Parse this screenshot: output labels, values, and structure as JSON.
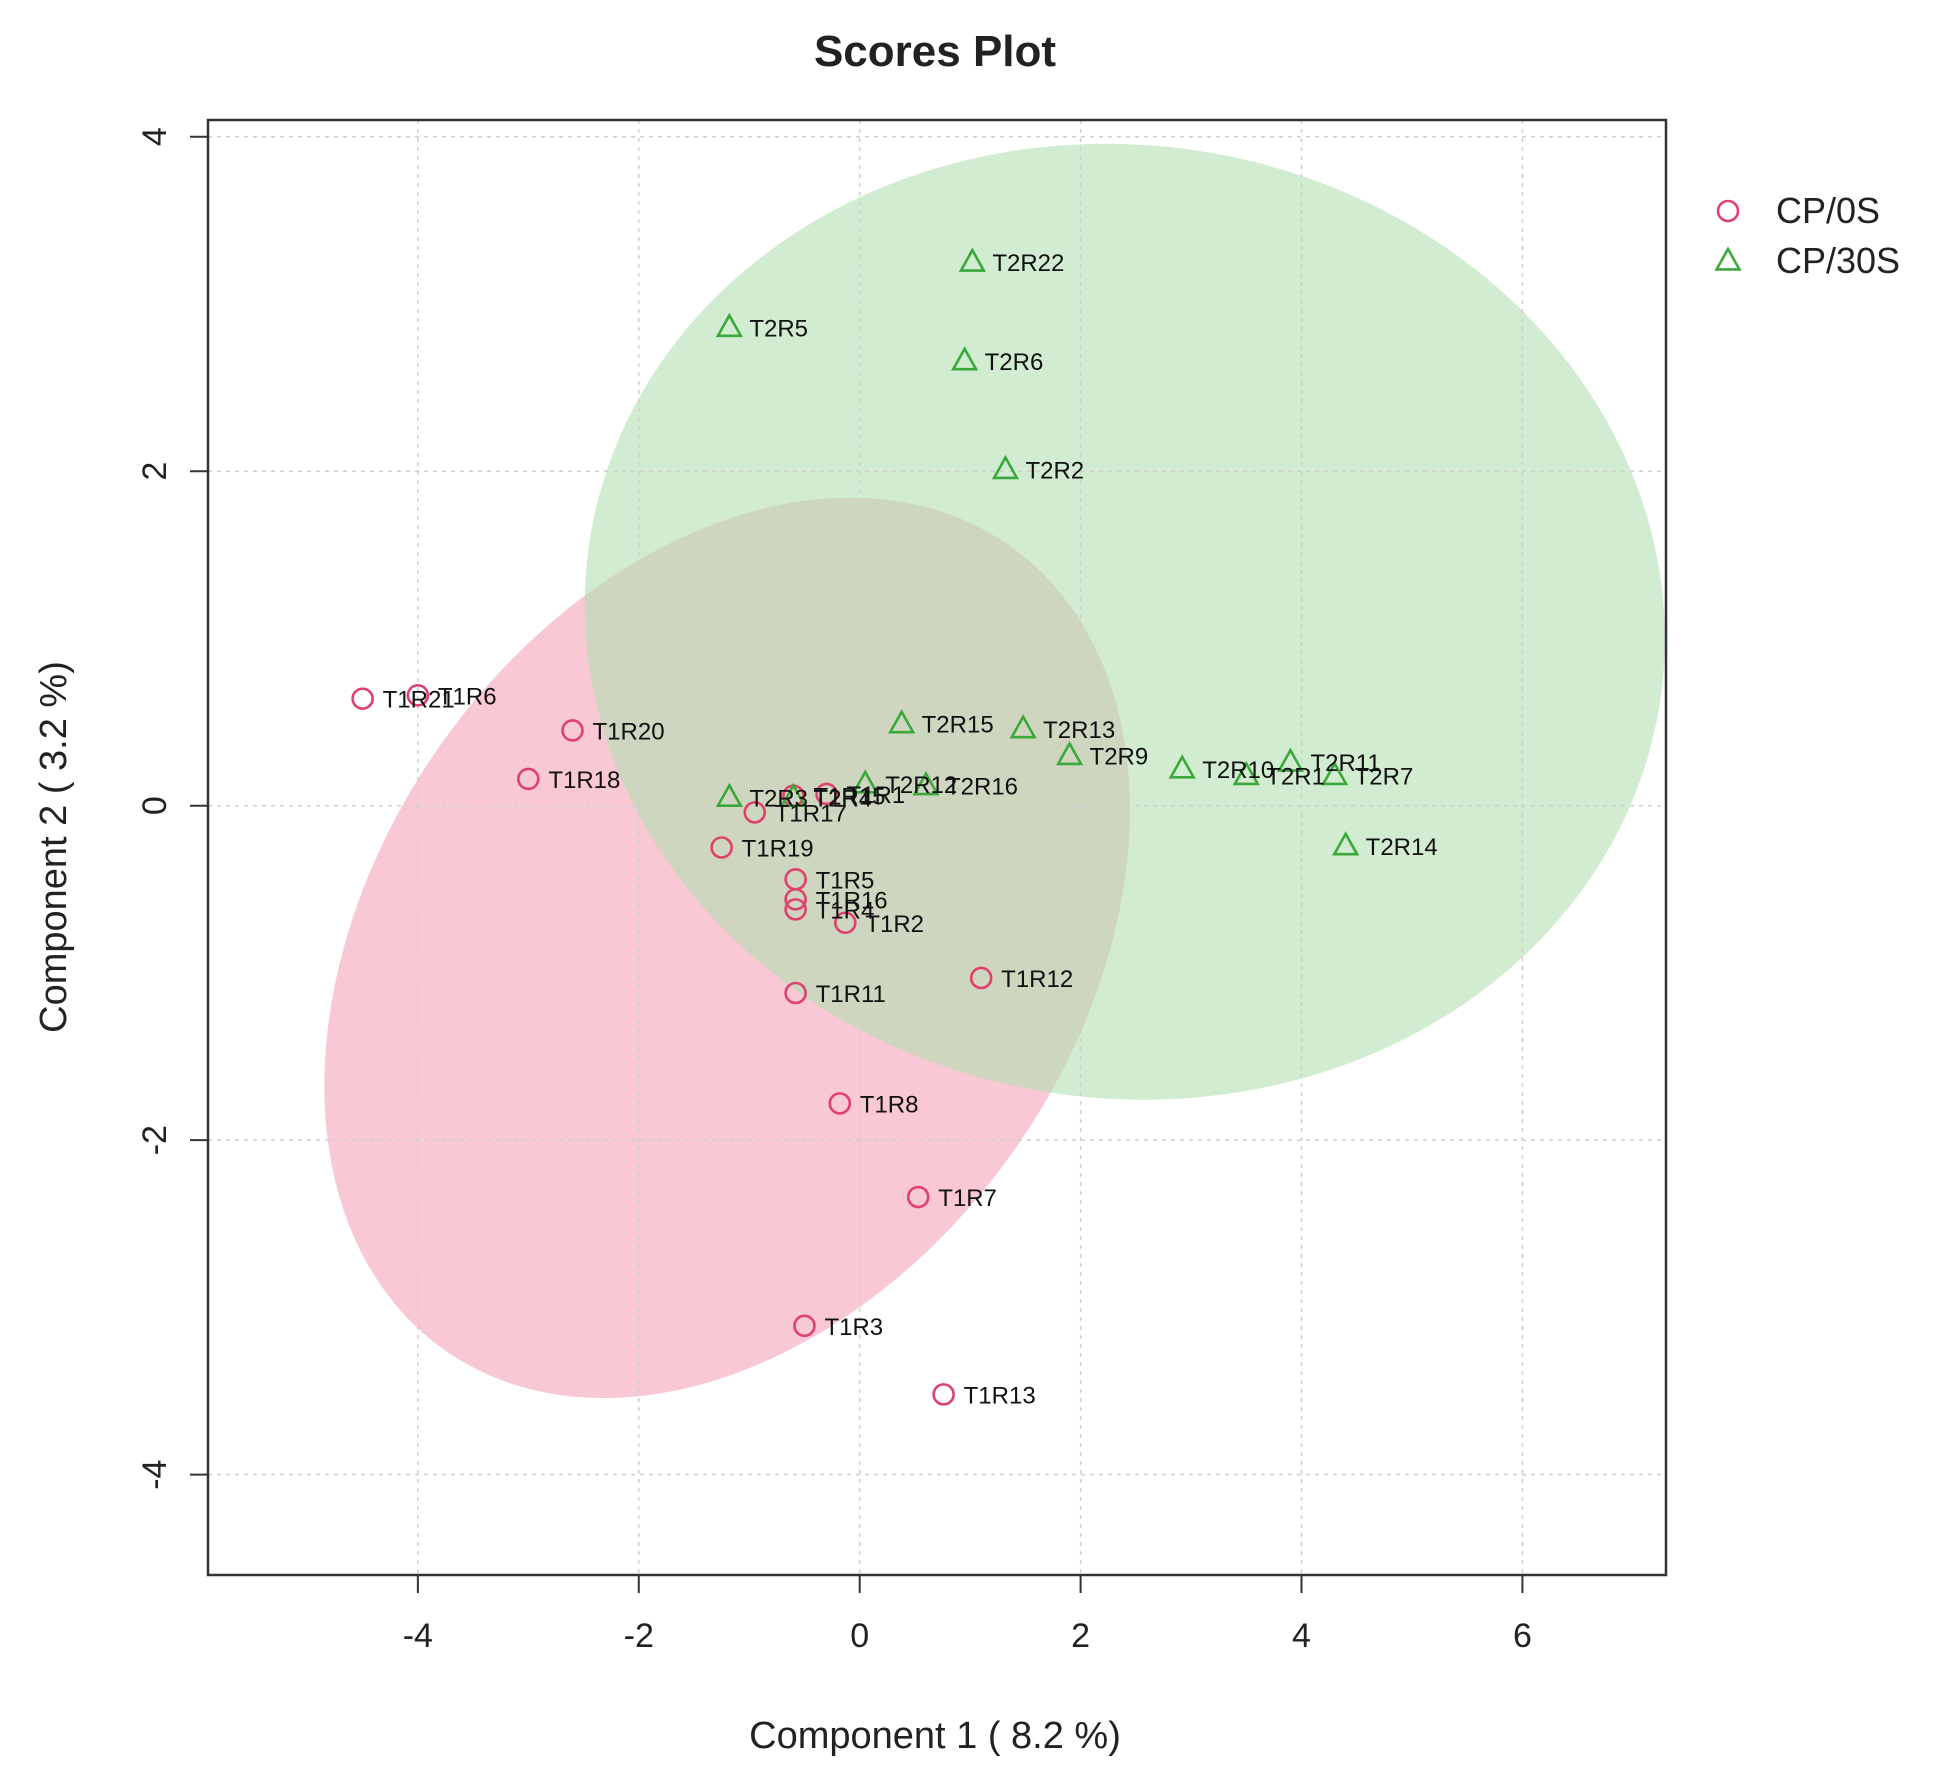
{
  "chart_data": {
    "type": "scatter",
    "title": "Scores Plot",
    "xlabel": "Component 1 ( 8.2 %)",
    "ylabel": "Component 2 ( 3.2 %)",
    "xlim": [
      -5.9,
      7.3
    ],
    "ylim": [
      -4.6,
      4.1
    ],
    "xticks": [
      -4,
      -2,
      0,
      2,
      4,
      6
    ],
    "yticks": [
      -4,
      -2,
      0,
      2,
      4
    ],
    "xtick_labels": [
      "-4",
      "-2",
      "0",
      "2",
      "4",
      "6"
    ],
    "ytick_labels": [
      "-4",
      "-2",
      "0",
      "2",
      "4"
    ],
    "grid": true,
    "legend_position": "top-right",
    "series": [
      {
        "name": "CP/0S",
        "marker": "circle",
        "color": "#e0406e",
        "fill": "#f4a3b8",
        "ellipse": {
          "cx": -1.2,
          "cy": -0.85,
          "rx": 4.45,
          "ry": 2.1,
          "angle_deg": 55
        },
        "points": [
          {
            "label": "T1R21",
            "x": -4.5,
            "y": 0.64
          },
          {
            "label": "T1R6",
            "x": -4.0,
            "y": 0.66
          },
          {
            "label": "T1R20",
            "x": -2.6,
            "y": 0.45
          },
          {
            "label": "T1R18",
            "x": -3.0,
            "y": 0.16
          },
          {
            "label": "T1R17",
            "x": -0.95,
            "y": -0.04
          },
          {
            "label": "T1R19",
            "x": -1.25,
            "y": -0.25
          },
          {
            "label": "T1R5",
            "x": -0.58,
            "y": -0.44
          },
          {
            "label": "T1R16",
            "x": -0.58,
            "y": -0.56
          },
          {
            "label": "T1R4",
            "x": -0.58,
            "y": -0.62
          },
          {
            "label": "T1R2",
            "x": -0.13,
            "y": -0.7
          },
          {
            "label": "T1R12",
            "x": 1.1,
            "y": -1.03
          },
          {
            "label": "T1R11",
            "x": -0.58,
            "y": -1.12
          },
          {
            "label": "T1R8",
            "x": -0.18,
            "y": -1.78
          },
          {
            "label": "T1R7",
            "x": 0.53,
            "y": -2.34
          },
          {
            "label": "T1R3",
            "x": -0.5,
            "y": -3.11
          },
          {
            "label": "T1R13",
            "x": 0.76,
            "y": -3.52
          },
          {
            "label": "T1R15",
            "x": -0.6,
            "y": 0.06
          },
          {
            "label": "T1R1",
            "x": -0.3,
            "y": 0.07
          }
        ]
      },
      {
        "name": "CP/30S",
        "marker": "triangle",
        "color": "#3aa83a",
        "fill": "#b3e0b3",
        "ellipse": {
          "cx": 2.4,
          "cy": 1.1,
          "rx": 4.9,
          "ry": 2.85,
          "angle_deg": -8
        },
        "points": [
          {
            "label": "T2R22",
            "x": 1.02,
            "y": 3.25
          },
          {
            "label": "T2R5",
            "x": -1.18,
            "y": 2.86
          },
          {
            "label": "T2R6",
            "x": 0.95,
            "y": 2.66
          },
          {
            "label": "T2R2",
            "x": 1.32,
            "y": 2.01
          },
          {
            "label": "T2R15",
            "x": 0.38,
            "y": 0.49
          },
          {
            "label": "T2R13",
            "x": 1.48,
            "y": 0.46
          },
          {
            "label": "T2R9",
            "x": 1.9,
            "y": 0.3
          },
          {
            "label": "T2R11",
            "x": 3.9,
            "y": 0.26
          },
          {
            "label": "T2R10",
            "x": 2.92,
            "y": 0.22
          },
          {
            "label": "T2R1",
            "x": 3.5,
            "y": 0.18
          },
          {
            "label": "T2R7",
            "x": 4.3,
            "y": 0.18
          },
          {
            "label": "T2R14",
            "x": 4.4,
            "y": -0.24
          },
          {
            "label": "T2R12",
            "x": 0.05,
            "y": 0.13
          },
          {
            "label": "T2R16",
            "x": 0.6,
            "y": 0.12
          },
          {
            "label": "T2R3",
            "x": -1.18,
            "y": 0.05
          },
          {
            "label": "T2R4",
            "x": -0.6,
            "y": 0.05
          }
        ]
      }
    ]
  }
}
